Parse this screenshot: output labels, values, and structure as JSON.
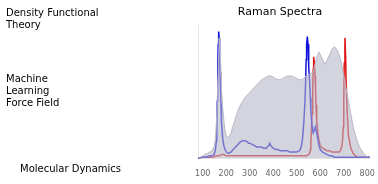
{
  "chart_data": {
    "type": "line",
    "title": "Raman Spectra",
    "annotations": [
      "Density Functional\nTheory",
      "Machine\nLearning\nForce Field",
      "Molecular Dynamics"
    ],
    "xlim": [
      80,
      810
    ],
    "xticks": [
      100,
      200,
      300,
      400,
      500,
      600,
      700,
      800
    ],
    "ylim": [
      0,
      1.05
    ],
    "grid": false,
    "tick_labels": "x",
    "series": [
      {
        "type": "area",
        "color": "#b8b8c8",
        "x": [
          80,
          100,
          120,
          140,
          150,
          155,
          160,
          165,
          168,
          170,
          173,
          175,
          178,
          180,
          185,
          190,
          195,
          200,
          210,
          220,
          230,
          240,
          250,
          260,
          270,
          280,
          290,
          300,
          310,
          320,
          330,
          340,
          350,
          360,
          370,
          380,
          390,
          400,
          410,
          420,
          430,
          440,
          450,
          460,
          470,
          480,
          490,
          500,
          510,
          520,
          530,
          540,
          550,
          560,
          570,
          575,
          580,
          585,
          590,
          595,
          600,
          610,
          620,
          630,
          640,
          650,
          660,
          670,
          680,
          690,
          700,
          710,
          720,
          730,
          740,
          750,
          760,
          770,
          780,
          790,
          800,
          810
        ],
        "values": [
          0.0,
          0.02,
          0.04,
          0.06,
          0.1,
          0.18,
          0.35,
          0.65,
          0.82,
          0.95,
          0.88,
          0.8,
          0.68,
          0.55,
          0.4,
          0.3,
          0.22,
          0.18,
          0.16,
          0.2,
          0.26,
          0.32,
          0.38,
          0.42,
          0.45,
          0.48,
          0.5,
          0.52,
          0.54,
          0.56,
          0.58,
          0.6,
          0.62,
          0.63,
          0.64,
          0.65,
          0.65,
          0.64,
          0.63,
          0.62,
          0.62,
          0.63,
          0.64,
          0.65,
          0.65,
          0.65,
          0.64,
          0.63,
          0.62,
          0.62,
          0.63,
          0.65,
          0.66,
          0.67,
          0.68,
          0.72,
          0.76,
          0.8,
          0.82,
          0.84,
          0.82,
          0.78,
          0.74,
          0.78,
          0.82,
          0.86,
          0.88,
          0.86,
          0.82,
          0.75,
          0.65,
          0.55,
          0.45,
          0.35,
          0.25,
          0.18,
          0.12,
          0.08,
          0.05,
          0.03,
          0.01,
          0.0
        ]
      },
      {
        "type": "line",
        "color": "#1010dd",
        "x": [
          80,
          100,
          115,
          130,
          140,
          148,
          152,
          155,
          158,
          160,
          162,
          164,
          166,
          168,
          170,
          172,
          175,
          178,
          180,
          185,
          190,
          195,
          200,
          210,
          220,
          230,
          240,
          250,
          260,
          270,
          280,
          290,
          295,
          300,
          310,
          320,
          330,
          340,
          350,
          360,
          370,
          375,
          380,
          385,
          390,
          400,
          410,
          420,
          430,
          440,
          450,
          460,
          470,
          480,
          490,
          500,
          510,
          515,
          520,
          525,
          530,
          535,
          538,
          540,
          542,
          545,
          548,
          550,
          552,
          555,
          558,
          560,
          563,
          565,
          568,
          570,
          575,
          580,
          585,
          590,
          595,
          600,
          610,
          620,
          630,
          640,
          650,
          660,
          670,
          680,
          690,
          700,
          710,
          720,
          730,
          740,
          750,
          760,
          770,
          780,
          790,
          800,
          810
        ],
        "values": [
          0.0,
          0.01,
          0.01,
          0.02,
          0.02,
          0.03,
          0.05,
          0.08,
          0.14,
          0.25,
          0.45,
          0.7,
          0.9,
          1.0,
          0.95,
          0.8,
          0.6,
          0.42,
          0.28,
          0.16,
          0.1,
          0.07,
          0.05,
          0.04,
          0.05,
          0.07,
          0.09,
          0.11,
          0.13,
          0.14,
          0.14,
          0.13,
          0.12,
          0.12,
          0.11,
          0.1,
          0.09,
          0.09,
          0.09,
          0.08,
          0.08,
          0.09,
          0.1,
          0.12,
          0.1,
          0.08,
          0.07,
          0.07,
          0.06,
          0.06,
          0.06,
          0.06,
          0.05,
          0.05,
          0.05,
          0.05,
          0.06,
          0.07,
          0.1,
          0.16,
          0.28,
          0.45,
          0.62,
          0.78,
          0.9,
          0.96,
          0.9,
          0.82,
          0.72,
          0.6,
          0.48,
          0.38,
          0.3,
          0.25,
          0.22,
          0.2,
          0.22,
          0.25,
          0.2,
          0.15,
          0.1,
          0.07,
          0.05,
          0.04,
          0.03,
          0.02,
          0.02,
          0.01,
          0.01,
          0.01,
          0.01,
          0.01,
          0.01,
          0.01,
          0.01,
          0.01,
          0.01,
          0.01,
          0.01,
          0.01,
          0.01,
          0.01,
          0.01
        ]
      },
      {
        "type": "line",
        "color": "#dd1010",
        "x": [
          80,
          100,
          120,
          140,
          160,
          170,
          180,
          190,
          200,
          210,
          220,
          230,
          240,
          250,
          260,
          270,
          280,
          290,
          300,
          310,
          320,
          330,
          340,
          350,
          360,
          370,
          380,
          390,
          400,
          410,
          420,
          430,
          440,
          450,
          460,
          470,
          480,
          490,
          500,
          510,
          520,
          530,
          540,
          550,
          555,
          558,
          560,
          562,
          565,
          568,
          570,
          572,
          575,
          578,
          580,
          582,
          585,
          590,
          595,
          600,
          610,
          620,
          630,
          640,
          650,
          660,
          670,
          680,
          685,
          690,
          695,
          698,
          700,
          702,
          705,
          708,
          710,
          715,
          720,
          730,
          740,
          750,
          760,
          770,
          780,
          790,
          800,
          810
        ],
        "values": [
          0.0,
          0.01,
          0.01,
          0.01,
          0.02,
          0.02,
          0.03,
          0.03,
          0.02,
          0.02,
          0.02,
          0.02,
          0.02,
          0.02,
          0.02,
          0.02,
          0.02,
          0.02,
          0.02,
          0.02,
          0.02,
          0.02,
          0.02,
          0.02,
          0.02,
          0.02,
          0.02,
          0.02,
          0.02,
          0.02,
          0.02,
          0.02,
          0.02,
          0.02,
          0.02,
          0.02,
          0.02,
          0.02,
          0.02,
          0.02,
          0.02,
          0.02,
          0.02,
          0.03,
          0.04,
          0.07,
          0.12,
          0.2,
          0.35,
          0.55,
          0.7,
          0.8,
          0.75,
          0.65,
          0.55,
          0.42,
          0.3,
          0.2,
          0.14,
          0.1,
          0.08,
          0.07,
          0.06,
          0.06,
          0.05,
          0.05,
          0.05,
          0.05,
          0.06,
          0.08,
          0.14,
          0.25,
          0.45,
          0.75,
          0.95,
          0.8,
          0.6,
          0.35,
          0.18,
          0.08,
          0.04,
          0.02,
          0.01,
          0.01,
          0.01,
          0.01,
          0.01,
          0.01
        ]
      }
    ]
  }
}
